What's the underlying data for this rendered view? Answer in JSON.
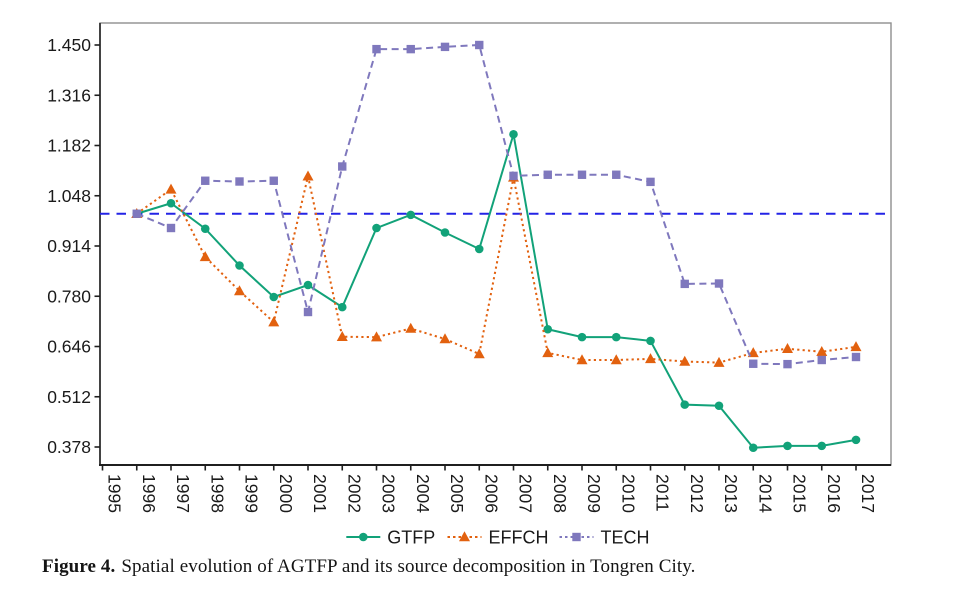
{
  "caption": {
    "label": "Figure 4.",
    "text": "Spatial evolution of AGTFP and its source decomposition in Tongren City."
  },
  "chart_data": {
    "type": "line",
    "title": "",
    "xlabel": "",
    "ylabel": "",
    "x_tick_labels": [
      "1995",
      "1996",
      "1997",
      "1998",
      "1999",
      "2000",
      "2001",
      "2002",
      "2003",
      "2004",
      "2005",
      "2006",
      "2007",
      "2008",
      "2009",
      "2010",
      "2011",
      "2012",
      "2013",
      "2014",
      "2015",
      "2016",
      "2017"
    ],
    "y_tick_labels": [
      "1.450",
      "1.316",
      "1.182",
      "1.048",
      "0.914",
      "0.780",
      "0.646",
      "0.512",
      "0.378"
    ],
    "xlim": [
      1995,
      2018
    ],
    "ylim": [
      0.33,
      1.509
    ],
    "grid": false,
    "legend_position": "bottom",
    "x": [
      1996,
      1997,
      1998,
      1999,
      2000,
      2001,
      2002,
      2003,
      2004,
      2005,
      2006,
      2007,
      2008,
      2009,
      2010,
      2011,
      2012,
      2013,
      2014,
      2015,
      2016,
      2017
    ],
    "series": [
      {
        "name": "GTFP",
        "color": "#12a279",
        "marker": "circle",
        "line_style": "solid",
        "values": [
          1.0,
          1.028,
          0.96,
          0.862,
          0.778,
          0.81,
          0.751,
          0.962,
          0.997,
          0.95,
          0.906,
          1.212,
          0.692,
          0.671,
          0.671,
          0.661,
          0.491,
          0.488,
          0.376,
          0.381,
          0.381,
          0.397
        ]
      },
      {
        "name": "EFFCH",
        "color": "#e2610f",
        "marker": "triangle",
        "line_style": "dotted",
        "values": [
          1.0,
          1.065,
          0.885,
          0.794,
          0.711,
          1.1,
          0.672,
          0.671,
          0.694,
          0.666,
          0.626,
          1.097,
          0.629,
          0.61,
          0.61,
          0.613,
          0.606,
          0.603,
          0.629,
          0.64,
          0.632,
          0.645
        ]
      },
      {
        "name": "TECH",
        "color": "#7f78bd",
        "marker": "square",
        "line_style": "dashed",
        "values": [
          1.0,
          0.962,
          1.088,
          1.086,
          1.088,
          0.738,
          1.126,
          1.439,
          1.439,
          1.445,
          1.45,
          1.101,
          1.104,
          1.104,
          1.104,
          1.085,
          0.813,
          0.814,
          0.6,
          0.599,
          0.61,
          0.618
        ]
      }
    ],
    "reference_line": {
      "value": 1.0,
      "color": "#2323e6",
      "style": "dashed"
    },
    "colors": {
      "axis_dark": "#1f1f1f",
      "box_gray": "#8f8f8f",
      "text": "#1a1a1a"
    }
  }
}
